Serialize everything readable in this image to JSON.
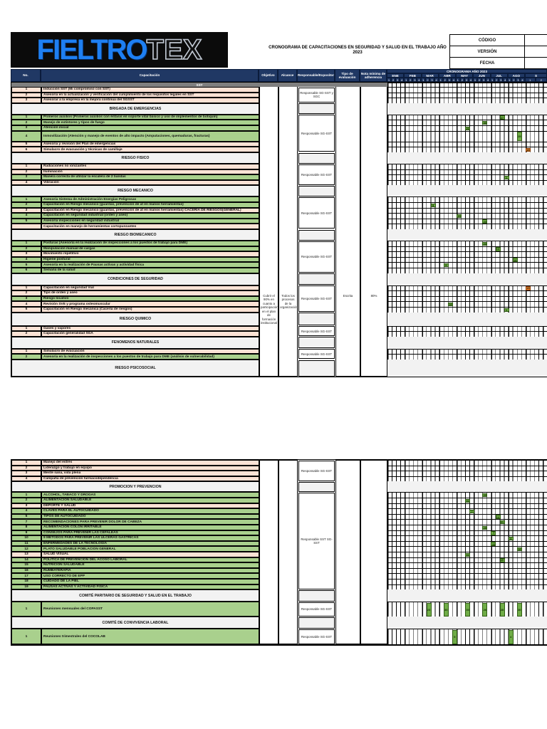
{
  "logo": {
    "part1": "FIELTRO",
    "part2": "TEX"
  },
  "title": "CRONOGRAMA DE CAPACITACIONES EN SEGURIDAD Y SALUD EN EL TRABAJO AÑO 2023",
  "meta_box": {
    "rows": [
      "CÓDIGO",
      "VERSIÓN",
      "FECHA"
    ]
  },
  "colors": {
    "navy": "#203864",
    "row_orange": "#FBE2D5",
    "row_green": "#A9D08D",
    "band_gray": "#F2F2F2",
    "band_dark": "#7F7F7F",
    "mark_green": "#70AD47",
    "mark_orange": "#ED7D31",
    "logo_blue": "#1E7FF2",
    "logo_bg": "#0B0B0B"
  },
  "table": {
    "headers": {
      "no": "No.",
      "capacitacion": "Capacitación",
      "objetivo": "Objetivo",
      "alcance": "Alcance",
      "responsable": "Responsable/Expositor",
      "tipo": "Tipo de evaluación",
      "nota": "Nota mínima de adherencia",
      "cronograma": "CRONOGRAMA AÑO 2023"
    },
    "months": [
      "ENE",
      "FEB",
      "MAR",
      "ABR",
      "MAY",
      "JUN",
      "JUL",
      "AGO",
      "S"
    ],
    "weeks": [
      "1",
      "2",
      "3",
      "4"
    ],
    "s_weeks": [
      "1",
      "2"
    ]
  },
  "page1": {
    "merged": {
      "objetivo": "Cubrir el 90% en cuanto a participación en el plan de formación institucional",
      "alcance": "Todos los procesos de la organización",
      "tipo": "Escrita",
      "nota": "80%"
    },
    "sections": [
      {
        "label": "SST",
        "dark": true,
        "band_h": 6,
        "responsable": "Responsable SG-SST y SGC",
        "rows": [
          {
            "n": "1",
            "t": "Inducción SST (Mi compromiso con SST)",
            "bg": "o"
          },
          {
            "n": "2",
            "t": "Asesoría en la actualización y verificación del cumplimiento de los requisitos legales en SST",
            "bg": "o"
          },
          {
            "n": "3",
            "t": "Asesorar a la empresa en la mejora continua del SGSST",
            "bg": "o"
          }
        ]
      },
      {
        "label": "BRIGADA DE EMERGENCIAS",
        "responsable": "Responsable SG-SST",
        "rows": [
          {
            "n": "1",
            "t": "Primeros auxilios (Primeros auxilios con énfasis en soporte vital básico y uso de implementos de botiquín)",
            "bg": "g",
            "marks": [
              {
                "c": 26,
                "t": "27"
              }
            ]
          },
          {
            "n": "2",
            "t": "Manejo de extintores y tipos de fuego",
            "bg": "g",
            "marks": [
              {
                "c": 22,
                "t": "30"
              }
            ]
          },
          {
            "n": "3",
            "t": "Atención inicial",
            "bg": "g",
            "marks": [
              {
                "c": 18,
                "t": "26"
              }
            ]
          },
          {
            "n": "4",
            "t": "Inmovilización (Atención y manejo de eventos de alto impacto (Amputaciones, quemaduras, fracturas)",
            "bg": "g",
            "h": 15.2,
            "marks": [
              {
                "c": 30,
                "t": "25"
              }
            ]
          },
          {
            "n": "5",
            "t": "Asesoría y revisión del Plan de emergencias",
            "bg": "o"
          },
          {
            "n": "6",
            "t": "Simulacro de evacuación y técnicas de camillaje",
            "bg": "o",
            "marks": [
              {
                "c": 32,
                "t": "15",
                "o": true
              }
            ]
          }
        ]
      },
      {
        "label": "RIESGO FISICO",
        "responsable": "Responsable SG-SST",
        "rows": [
          {
            "n": "1",
            "t": "Radiaciones no ionizantes",
            "bg": "o"
          },
          {
            "n": "2",
            "t": "Iluminación",
            "bg": "o"
          },
          {
            "n": "3",
            "t": "Manera correcta de utilizar la escalera de 2 bandas",
            "bg": "g",
            "marks": [
              {
                "c": 27,
                "t": "1"
              }
            ]
          },
          {
            "n": "4",
            "t": "Vibración",
            "bg": "o"
          }
        ]
      },
      {
        "label": "RIESGO MECANICO",
        "responsable": "Responsable SG-SST",
        "rows": [
          {
            "n": "1",
            "t": "Asesoría Sistema de Administración Energías Peligrosas",
            "bg": "g"
          },
          {
            "n": "2",
            "t": "Capacitación en Riesgo mecánico (guardas, prevención de at en manos herramientas)",
            "bg": "g",
            "marks": [
              {
                "c": 10,
                "t": "8"
              }
            ]
          },
          {
            "n": "3",
            "t": "Capacitación en Riesgo mecánico (guardas, prevención de at en manos herramientas) CACERIA DE RIESGOS(GENERAL)",
            "bg": "o"
          },
          {
            "n": "4",
            "t": "Capacitación en seguridad industrial (orden y aseo)",
            "bg": "g",
            "marks": [
              {
                "c": 16,
                "t": "15"
              }
            ]
          },
          {
            "n": "5",
            "t": "Asesoría inspecciones en seguridad industrial",
            "bg": "g",
            "marks": [
              {
                "c": 22,
                "t": "23"
              }
            ]
          },
          {
            "n": "",
            "t": "Capacitación en manejo de herramientas cortopunzantes",
            "bg": "o"
          }
        ]
      },
      {
        "label": "RIESGO BIOMECANICO",
        "responsable": "Responsable SG-SST",
        "rows": [
          {
            "n": "1",
            "t": "Posturas (Asesoría en la realización de inspecciones a los puestos de trabajo para DME)",
            "bg": "g",
            "marks": [
              {
                "c": 22,
                "t": "23"
              }
            ]
          },
          {
            "n": "2",
            "t": "Manipulación manual de cargas",
            "bg": "g",
            "marks": [
              {
                "c": 25,
                "t": "14"
              }
            ]
          },
          {
            "n": "3",
            "t": "Movimiento repetitivo",
            "bg": "o"
          },
          {
            "n": "4",
            "t": "Higiene postural",
            "bg": "g",
            "marks": [
              {
                "c": 29,
                "t": "18"
              }
            ]
          },
          {
            "n": "5",
            "t": "Asesoría en la realización de Pausas activas y actividad física",
            "bg": "g",
            "marks": [
              {
                "c": 13,
                "t": "5"
              }
            ]
          },
          {
            "n": "6",
            "t": "Semana de la salud",
            "bg": "g"
          }
        ]
      },
      {
        "label": "CONDICIONES DE SEGURIDAD",
        "band_h": 17,
        "responsable": "Responsable SG-SST",
        "rows": [
          {
            "n": "1",
            "t": "Capacitación en seguridad Vial",
            "bg": "o",
            "marks": [
              {
                "c": 32,
                "t": "15",
                "o": true
              }
            ]
          },
          {
            "n": "2",
            "t": "Tips de orden y aseo",
            "bg": "o"
          },
          {
            "n": "3",
            "t": "Riesgo locativo",
            "bg": "g"
          },
          {
            "n": "4",
            "t": "Revisión SVE y programa osteomuscular",
            "bg": "o",
            "marks": [
              {
                "c": 14,
                "t": "18"
              }
            ]
          },
          {
            "n": "5",
            "t": "Capacitación en Riesgo mecánica (Cacería de riesgos)",
            "bg": "o",
            "marks": [
              {
                "c": 27,
                "t": "1"
              }
            ]
          }
        ]
      },
      {
        "label": "RIESGO QUIMICO",
        "band_h": 19,
        "responsable": "Responsable SG-SST",
        "rows": [
          {
            "n": "1",
            "t": "Gases y vapores",
            "bg": "o"
          },
          {
            "n": "2",
            "t": "Capacitación generalidad SGA",
            "bg": "o"
          }
        ]
      },
      {
        "label": "FENOMENOS NATURALES",
        "band_h": 17,
        "responsable": "Responsable SG-SST",
        "rows": [
          {
            "n": "1",
            "t": "Simulacro de evacuación",
            "bg": "o"
          },
          {
            "n": "2",
            "t": "Asesoría en la realización de inspecciones a los puestos de trabajo para DME (análisis de vulnerabilidad)",
            "bg": "g"
          }
        ]
      },
      {
        "label": "RIESGO PSICOSOCIAL",
        "band_h": 24,
        "rows": []
      }
    ]
  },
  "page2": {
    "sections": [
      {
        "responsable": "Responsable SG-SST",
        "rows": [
          {
            "n": "1",
            "t": "Manejo del estrés",
            "bg": "o"
          },
          {
            "n": "2",
            "t": "Liderazgo y trabajo en equipo",
            "bg": "o"
          },
          {
            "n": "3",
            "t": "Mente sana, vida plena",
            "bg": "o"
          },
          {
            "n": "4",
            "t": "Campaña de prevención farmacodependencia",
            "bg": "o"
          }
        ]
      },
      {
        "label": "PROMOCION Y PREVENCION",
        "band_h": 15,
        "responsable": "Responsable SST SG-SST",
        "rows": [
          {
            "n": "1",
            "t": "ALCOHOL, TABACO Y DROGAS",
            "bg": "g",
            "marks": [
              {
                "c": 22,
                "t": "23"
              }
            ]
          },
          {
            "n": "2",
            "t": "ALIMENTACION SALUDABLE",
            "bg": "g",
            "marks": [
              {
                "c": 18,
                "t": "31"
              }
            ]
          },
          {
            "n": "3",
            "t": "DEPORTE Y SALUD",
            "bg": "o"
          },
          {
            "n": "4",
            "t": "CLAVES PARA EL AUTOCUIDADO",
            "bg": "g",
            "marks": [
              {
                "c": 19,
                "t": "7"
              }
            ]
          },
          {
            "n": "5",
            "t": "TIPOS DE AUTOCUIDADO",
            "bg": "g",
            "marks": [
              {
                "c": 25,
                "t": "14"
              }
            ]
          },
          {
            "n": "7",
            "t": "RECOMENDACIONES PARA PREVENIR DOLOR DE CABEZA",
            "bg": "g",
            "marks": [
              {
                "c": 26,
                "t": "21"
              }
            ]
          },
          {
            "n": "8",
            "t": "ALIMENTACION COLON IRRITABLE",
            "bg": "g",
            "marks": [
              {
                "c": 22,
                "t": "29"
              }
            ]
          },
          {
            "n": "9",
            "t": "CONSEJOS PARA PREVENIR LAS CEFALEAS",
            "bg": "g",
            "marks": [
              {
                "c": 24,
                "t": "7"
              }
            ]
          },
          {
            "n": "10",
            "t": "9 METODOS PARA PREVENIR LAS ULCERAS GASTRICAS",
            "bg": "g",
            "marks": [
              {
                "c": 28,
                "t": "4"
              }
            ]
          },
          {
            "n": "11",
            "t": "ENFERMEDADES DE LA TECNOLOGIA",
            "bg": "g",
            "marks": [
              {
                "c": 24,
                "t": "11"
              }
            ]
          },
          {
            "n": "12",
            "t": "PLATO SALUDABLE POBLACION GENERAL",
            "bg": "g",
            "marks": [
              {
                "c": 30,
                "t": "18"
              }
            ]
          },
          {
            "n": "13",
            "t": "SALUD VISUAL",
            "bg": "o",
            "marks": [
              {
                "c": 18,
                "t": "31"
              }
            ]
          },
          {
            "n": "14",
            "t": "POLITICA DE PREVENCION DEL ACOSO LABORAL",
            "bg": "g",
            "marks": [
              {
                "c": 26,
                "t": "25"
              }
            ]
          },
          {
            "n": "15",
            "t": "NUTRICION SALUDABLE",
            "bg": "g"
          },
          {
            "n": "16",
            "t": "RUMBATERAPIA",
            "bg": "g"
          },
          {
            "n": "17",
            "t": "USO CORRECTO DE EPP",
            "bg": "g"
          },
          {
            "n": "18",
            "t": "CUIDADO DE LA PIEL",
            "bg": "g"
          },
          {
            "n": "19",
            "t": "PAUSAS ACTIVAS Y ACTIVIDAD FISICA",
            "bg": "g"
          }
        ]
      },
      {
        "label": "COMITÉ PARITARIO DE SEGURIDAD Y SALUD EN EL TRABAJO",
        "band_h": 17,
        "responsable": "Responsable SG-SST",
        "rows": [
          {
            "n": "1",
            "t": "Reuniones mensuales del COPASST",
            "bg": "g",
            "h": 21,
            "marks": [
              {
                "c": 9,
                "t": "23"
              },
              {
                "c": 13,
                "t": "30"
              },
              {
                "c": 18,
                "t": "30"
              },
              {
                "c": 22,
                "t": "26"
              },
              {
                "c": 26,
                "t": "28"
              },
              {
                "c": 30,
                "t": "30"
              }
            ]
          }
        ]
      },
      {
        "label": "COMITÉ DE CONVIVENCIA LABORAL",
        "band_h": 17,
        "responsable": "Responsable SG-SST",
        "rows": [
          {
            "n": "1",
            "t": "Reuniones trimestrales del COCOLAB",
            "bg": "g",
            "h": 22,
            "marks": [
              {
                "c": 15,
                "t": "5"
              },
              {
                "c": 28,
                "t": "4"
              }
            ]
          }
        ]
      }
    ]
  }
}
